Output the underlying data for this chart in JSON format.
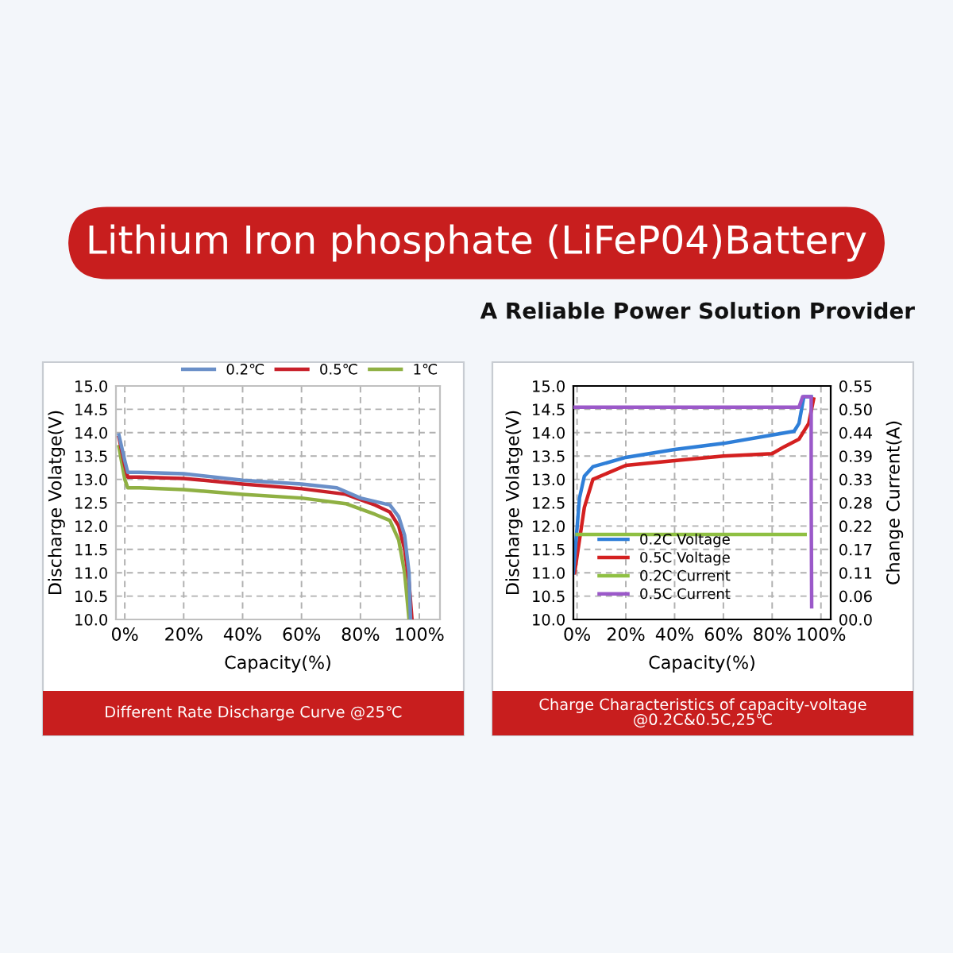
{
  "chart_data": [
    {
      "type": "line",
      "title": "Different Rate Discharge Curve @25℃",
      "xlabel": "Capacity(%)",
      "ylabel": "Discharge Volatge(V)",
      "annotations": [
        "Lithium Iron phosphate (LiFeP04)Battery",
        "A Reliable Power Solution Provider"
      ],
      "xlim": [
        -3,
        107
      ],
      "xticks": [
        {
          "value": 0,
          "label": "0%"
        },
        {
          "value": 20,
          "label": "20%"
        },
        {
          "value": 40,
          "label": "40%"
        },
        {
          "value": 60,
          "label": "60%"
        },
        {
          "value": 80,
          "label": "80%"
        },
        {
          "value": 100,
          "label": "100%"
        }
      ],
      "ylim": [
        10,
        15
      ],
      "yticks": [
        {
          "value": 10,
          "label": "10.0"
        },
        {
          "value": 10.5,
          "label": "10.5"
        },
        {
          "value": 11,
          "label": "11.0"
        },
        {
          "value": 11.5,
          "label": "11.5"
        },
        {
          "value": 12,
          "label": "12.0"
        },
        {
          "value": 12.5,
          "label": "12.5"
        },
        {
          "value": 13,
          "label": "13.0"
        },
        {
          "value": 13.5,
          "label": "13.5"
        },
        {
          "value": 14,
          "label": "14.0"
        },
        {
          "value": 14.5,
          "label": "14.5"
        },
        {
          "value": 15,
          "label": "15.0"
        }
      ],
      "grid": true,
      "legend": "top right",
      "marker": "none",
      "line_style": "solid",
      "series": [
        {
          "name": "0.2℃",
          "color": "#6a8fc8",
          "x": [
            -2,
            0,
            1,
            5,
            20,
            40,
            60,
            72,
            80,
            90,
            93,
            95,
            96.5,
            97
          ],
          "values": [
            13.95,
            13.4,
            13.15,
            13.15,
            13.12,
            12.98,
            12.9,
            12.82,
            12.6,
            12.45,
            12.2,
            11.8,
            11.0,
            10.0
          ]
        },
        {
          "name": "0.5℃",
          "color": "#c8202a",
          "x": [
            -2,
            0,
            1,
            5,
            20,
            40,
            60,
            75,
            85,
            90,
            93,
            95,
            96.5,
            97.5
          ],
          "values": [
            13.9,
            13.3,
            13.05,
            13.05,
            13.02,
            12.9,
            12.8,
            12.68,
            12.45,
            12.3,
            12.0,
            11.5,
            10.8,
            10.0
          ]
        },
        {
          "name": "1℃",
          "color": "#8fb043",
          "x": [
            -2,
            0,
            1,
            5,
            20,
            40,
            60,
            75,
            85,
            90,
            93,
            95,
            96.5
          ],
          "values": [
            13.7,
            13.0,
            12.82,
            12.82,
            12.78,
            12.68,
            12.6,
            12.48,
            12.25,
            12.12,
            11.7,
            11.0,
            10.0
          ]
        }
      ]
    },
    {
      "type": "line",
      "title": "Charge Characteristics of capacity-voltage\n@0.2C&0.5C,25℃",
      "xlabel": "Capacity(%)",
      "ylabel": "Discharge Volatge(V)",
      "y2label": "Change Current(A)",
      "xlim": [
        -1.5,
        104
      ],
      "xticks": [
        {
          "value": 0,
          "label": "0%"
        },
        {
          "value": 20,
          "label": "20%"
        },
        {
          "value": 40,
          "label": "40%"
        },
        {
          "value": 60,
          "label": "60%"
        },
        {
          "value": 80,
          "label": "80%"
        },
        {
          "value": 100,
          "label": "100%"
        }
      ],
      "ylim": [
        10,
        15
      ],
      "yticks": [
        {
          "value": 10,
          "label": "10.0"
        },
        {
          "value": 10.5,
          "label": "10.5"
        },
        {
          "value": 11,
          "label": "11.0"
        },
        {
          "value": 11.5,
          "label": "11.5"
        },
        {
          "value": 12,
          "label": "12.0"
        },
        {
          "value": 12.5,
          "label": "12.5"
        },
        {
          "value": 13,
          "label": "13.0"
        },
        {
          "value": 13.5,
          "label": "13.5"
        },
        {
          "value": 14,
          "label": "14.0"
        },
        {
          "value": 14.5,
          "label": "14.5"
        },
        {
          "value": 15,
          "label": "15.0"
        }
      ],
      "y2lim": [
        0,
        0.55
      ],
      "y2ticks": [
        {
          "value": 0,
          "label": "00.0"
        },
        {
          "value": 0.055,
          "label": "0.06"
        },
        {
          "value": 0.11,
          "label": "0.11"
        },
        {
          "value": 0.165,
          "label": "0.17"
        },
        {
          "value": 0.22,
          "label": "0.22"
        },
        {
          "value": 0.275,
          "label": "0.28"
        },
        {
          "value": 0.33,
          "label": "0.33"
        },
        {
          "value": 0.385,
          "label": "0.39"
        },
        {
          "value": 0.44,
          "label": "0.44"
        },
        {
          "value": 0.495,
          "label": "0.50"
        },
        {
          "value": 0.55,
          "label": "0.55"
        }
      ],
      "grid": true,
      "legend": "lower left",
      "marker": "none",
      "line_style": "solid",
      "series": [
        {
          "name": "0.2C Voltage",
          "color": "#2f7fd8",
          "x": [
            -1.5,
            1,
            3,
            6.5,
            20,
            40,
            60,
            80,
            89,
            91,
            93,
            96
          ],
          "values": [
            11.0,
            12.6,
            13.07,
            13.27,
            13.47,
            13.64,
            13.77,
            13.95,
            14.03,
            14.2,
            14.77,
            14.77
          ]
        },
        {
          "name": "0.5C Voltage",
          "color": "#d42020",
          "x": [
            -1,
            1,
            3,
            6.5,
            20,
            40,
            60,
            80,
            85,
            91,
            95,
            97
          ],
          "values": [
            11.0,
            11.7,
            12.4,
            13.0,
            13.3,
            13.4,
            13.5,
            13.55,
            13.7,
            13.86,
            14.2,
            14.72
          ]
        },
        {
          "name": "0.2C Current",
          "color": "#8fc043",
          "axis": "y2",
          "x": [
            0,
            93.5
          ],
          "values": [
            0.2,
            0.2
          ]
        },
        {
          "name": "0.5C Current",
          "color": "#9b59c9",
          "axis": "y2",
          "x": [
            -1.5,
            91,
            92.5,
            96,
            96,
            96.2
          ],
          "values": [
            0.5,
            0.5,
            0.525,
            0.525,
            0.3,
            0.03
          ]
        }
      ]
    }
  ]
}
